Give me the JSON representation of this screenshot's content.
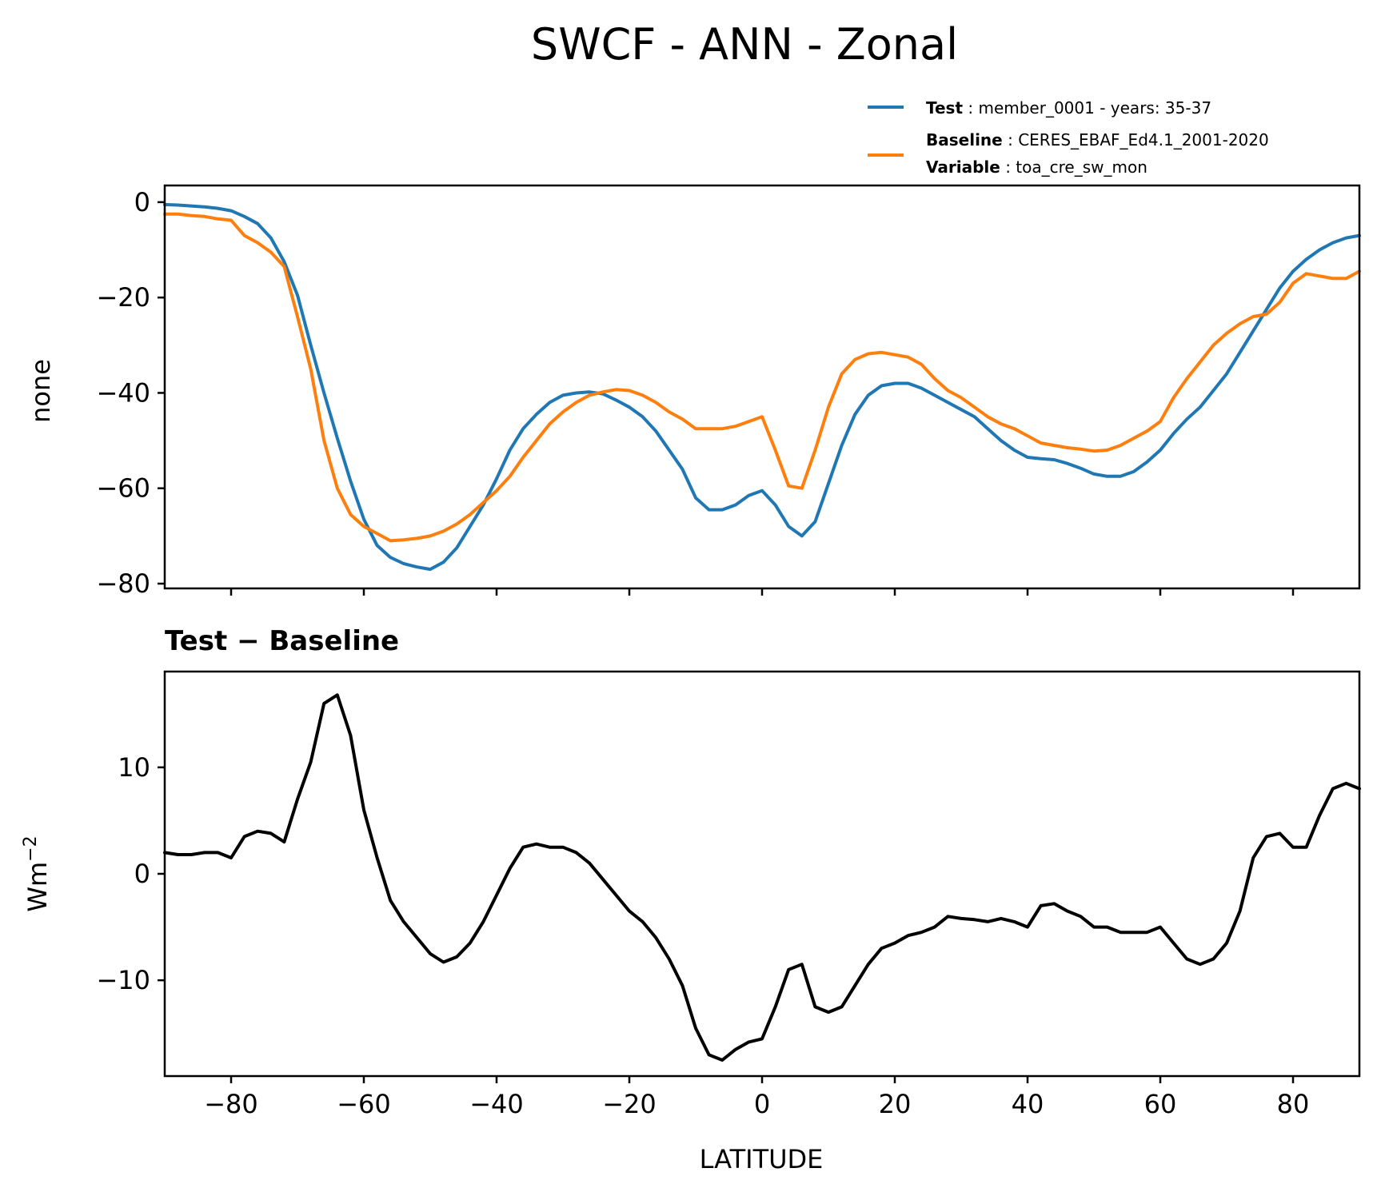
{
  "title": "SWCF - ANN - Zonal",
  "chart_data": [
    {
      "type": "line",
      "ylabel": "none",
      "xlim": [
        -90,
        90
      ],
      "ylim": [
        -81,
        3.5
      ],
      "xticks": [
        -80,
        -60,
        -40,
        -20,
        0,
        20,
        40,
        60,
        80
      ],
      "yticks": [
        0,
        -20,
        -40,
        -60,
        -80
      ],
      "ytick_labels": [
        "0",
        "−20",
        "−40",
        "−60",
        "−80"
      ],
      "grid": false,
      "legend": {
        "placement": "top-right",
        "entries": [
          {
            "bold": "Test",
            "sep": " : ",
            "text": "member_0001 - years: 35-37",
            "color": "#1f77b4"
          },
          {
            "bold": "Baseline",
            "sep": " : ",
            "text": "CERES_EBAF_Ed4.1_2001-2020",
            "color": "#ff7f0e"
          },
          {
            "bold": "Variable",
            "sep": " : ",
            "text": "toa_cre_sw_mon",
            "color": ""
          }
        ]
      },
      "x": [
        -90,
        -88,
        -86,
        -84,
        -82,
        -80,
        -78,
        -76,
        -74,
        -72,
        -70,
        -68,
        -66,
        -64,
        -62,
        -60,
        -58,
        -56,
        -54,
        -52,
        -50,
        -48,
        -46,
        -44,
        -42,
        -40,
        -38,
        -36,
        -34,
        -32,
        -30,
        -28,
        -26,
        -24,
        -22,
        -20,
        -18,
        -16,
        -14,
        -12,
        -10,
        -8,
        -6,
        -4,
        -2,
        0,
        2,
        4,
        6,
        8,
        10,
        12,
        14,
        16,
        18,
        20,
        22,
        24,
        26,
        28,
        30,
        32,
        34,
        36,
        38,
        40,
        42,
        44,
        46,
        48,
        50,
        52,
        54,
        56,
        58,
        60,
        62,
        64,
        66,
        68,
        70,
        72,
        74,
        76,
        78,
        80,
        82,
        84,
        86,
        88,
        90
      ],
      "series": [
        {
          "name": "Test",
          "color": "#1f77b4",
          "values": [
            -0.5,
            -0.6,
            -0.8,
            -1.0,
            -1.3,
            -1.8,
            -3.0,
            -4.5,
            -7.5,
            -12.5,
            -19.5,
            -30.0,
            -40.0,
            -49.5,
            -58.5,
            -66.5,
            -72.0,
            -74.5,
            -75.8,
            -76.5,
            -77.0,
            -75.5,
            -72.5,
            -68.0,
            -63.5,
            -58.0,
            -52.0,
            -47.5,
            -44.5,
            -42.0,
            -40.5,
            -40.0,
            -39.8,
            -40.2,
            -41.5,
            -43.0,
            -45.0,
            -48.0,
            -52.0,
            -56.0,
            -62.0,
            -64.5,
            -64.5,
            -63.5,
            -61.5,
            -60.5,
            -63.5,
            -68.0,
            -70.0,
            -67.0,
            -59.0,
            -51.0,
            -44.5,
            -40.5,
            -38.5,
            -38.0,
            -38.0,
            -39.0,
            -40.5,
            -42.0,
            -43.5,
            -45.0,
            -47.5,
            -50.0,
            -52.0,
            -53.5,
            -53.8,
            -54.0,
            -54.8,
            -55.8,
            -57.0,
            -57.5,
            -57.5,
            -56.5,
            -54.5,
            -52.0,
            -48.5,
            -45.5,
            -43.0,
            -39.5,
            -36.0,
            -31.5,
            -27.0,
            -22.5,
            -18.0,
            -14.5,
            -12.0,
            -10.0,
            -8.5,
            -7.5,
            -7.0
          ]
        },
        {
          "name": "Baseline",
          "color": "#ff7f0e",
          "values": [
            -2.5,
            -2.5,
            -2.8,
            -3.0,
            -3.5,
            -3.8,
            -7.0,
            -8.5,
            -10.5,
            -13.5,
            -24.0,
            -35.0,
            -50.0,
            -60.0,
            -65.5,
            -68.0,
            -69.5,
            -71.0,
            -70.8,
            -70.5,
            -70.0,
            -69.0,
            -67.5,
            -65.5,
            -63.0,
            -60.5,
            -57.5,
            -53.5,
            -50.0,
            -46.5,
            -44.0,
            -42.0,
            -40.5,
            -39.8,
            -39.3,
            -39.5,
            -40.5,
            -42.0,
            -44.0,
            -45.5,
            -47.5,
            -47.5,
            -47.5,
            -47.0,
            -46.0,
            -45.0,
            -52.0,
            -59.5,
            -60.0,
            -52.0,
            -43.0,
            -36.0,
            -33.0,
            -31.8,
            -31.5,
            -32.0,
            -32.5,
            -34.0,
            -37.0,
            -39.5,
            -41.0,
            -43.0,
            -45.0,
            -46.5,
            -47.5,
            -49.0,
            -50.5,
            -51.0,
            -51.5,
            -51.8,
            -52.2,
            -52.0,
            -51.0,
            -49.5,
            -48.0,
            -46.0,
            -41.0,
            -37.0,
            -33.5,
            -30.0,
            -27.5,
            -25.5,
            -24.0,
            -23.5,
            -21.0,
            -17.0,
            -15.0,
            -15.5,
            -16.0,
            -16.0,
            -14.5
          ]
        }
      ]
    },
    {
      "type": "line",
      "title": "Test − Baseline",
      "xlabel": "LATITUDE",
      "ylabel": "Wm",
      "ylabel_sup": "−2",
      "xlim": [
        -90,
        90
      ],
      "ylim": [
        -19,
        19
      ],
      "xticks": [
        -80,
        -60,
        -40,
        -20,
        0,
        20,
        40,
        60,
        80
      ],
      "xtick_labels": [
        "−80",
        "−60",
        "−40",
        "−20",
        "0",
        "20",
        "40",
        "60",
        "80"
      ],
      "yticks": [
        10,
        0,
        -10
      ],
      "ytick_labels": [
        "10",
        "0",
        "−10"
      ],
      "grid": false,
      "x": [
        -90,
        -88,
        -86,
        -84,
        -82,
        -80,
        -78,
        -76,
        -74,
        -72,
        -70,
        -68,
        -66,
        -64,
        -62,
        -60,
        -58,
        -56,
        -54,
        -52,
        -50,
        -48,
        -46,
        -44,
        -42,
        -40,
        -38,
        -36,
        -34,
        -32,
        -30,
        -28,
        -26,
        -24,
        -22,
        -20,
        -18,
        -16,
        -14,
        -12,
        -10,
        -8,
        -6,
        -4,
        -2,
        0,
        2,
        4,
        6,
        8,
        10,
        12,
        14,
        16,
        18,
        20,
        22,
        24,
        26,
        28,
        30,
        32,
        34,
        36,
        38,
        40,
        42,
        44,
        46,
        48,
        50,
        52,
        54,
        56,
        58,
        60,
        62,
        64,
        66,
        68,
        70,
        72,
        74,
        76,
        78,
        80,
        82,
        84,
        86,
        88,
        90
      ],
      "series": [
        {
          "name": "Test − Baseline",
          "color": "#000000",
          "values": [
            2.0,
            1.8,
            1.8,
            2.0,
            2.0,
            1.5,
            3.5,
            4.0,
            3.8,
            3.0,
            7.0,
            10.5,
            16.0,
            16.8,
            13.0,
            6.0,
            1.5,
            -2.5,
            -4.5,
            -6.0,
            -7.5,
            -8.3,
            -7.8,
            -6.5,
            -4.5,
            -2.0,
            0.5,
            2.5,
            2.8,
            2.5,
            2.5,
            2.0,
            1.0,
            -0.5,
            -2.0,
            -3.5,
            -4.5,
            -6.0,
            -8.0,
            -10.5,
            -14.5,
            -17.0,
            -17.5,
            -16.5,
            -15.8,
            -15.5,
            -12.5,
            -9.0,
            -8.5,
            -12.5,
            -13.0,
            -12.5,
            -10.5,
            -8.5,
            -7.0,
            -6.5,
            -5.8,
            -5.5,
            -5.0,
            -4.0,
            -4.2,
            -4.3,
            -4.5,
            -4.2,
            -4.5,
            -5.0,
            -3.0,
            -2.8,
            -3.5,
            -4.0,
            -5.0,
            -5.0,
            -5.5,
            -5.5,
            -5.5,
            -5.0,
            -6.5,
            -8.0,
            -8.5,
            -8.0,
            -6.5,
            -3.5,
            1.5,
            3.5,
            3.8,
            2.5,
            2.5,
            5.5,
            8.0,
            8.5,
            8.0
          ]
        }
      ]
    }
  ]
}
